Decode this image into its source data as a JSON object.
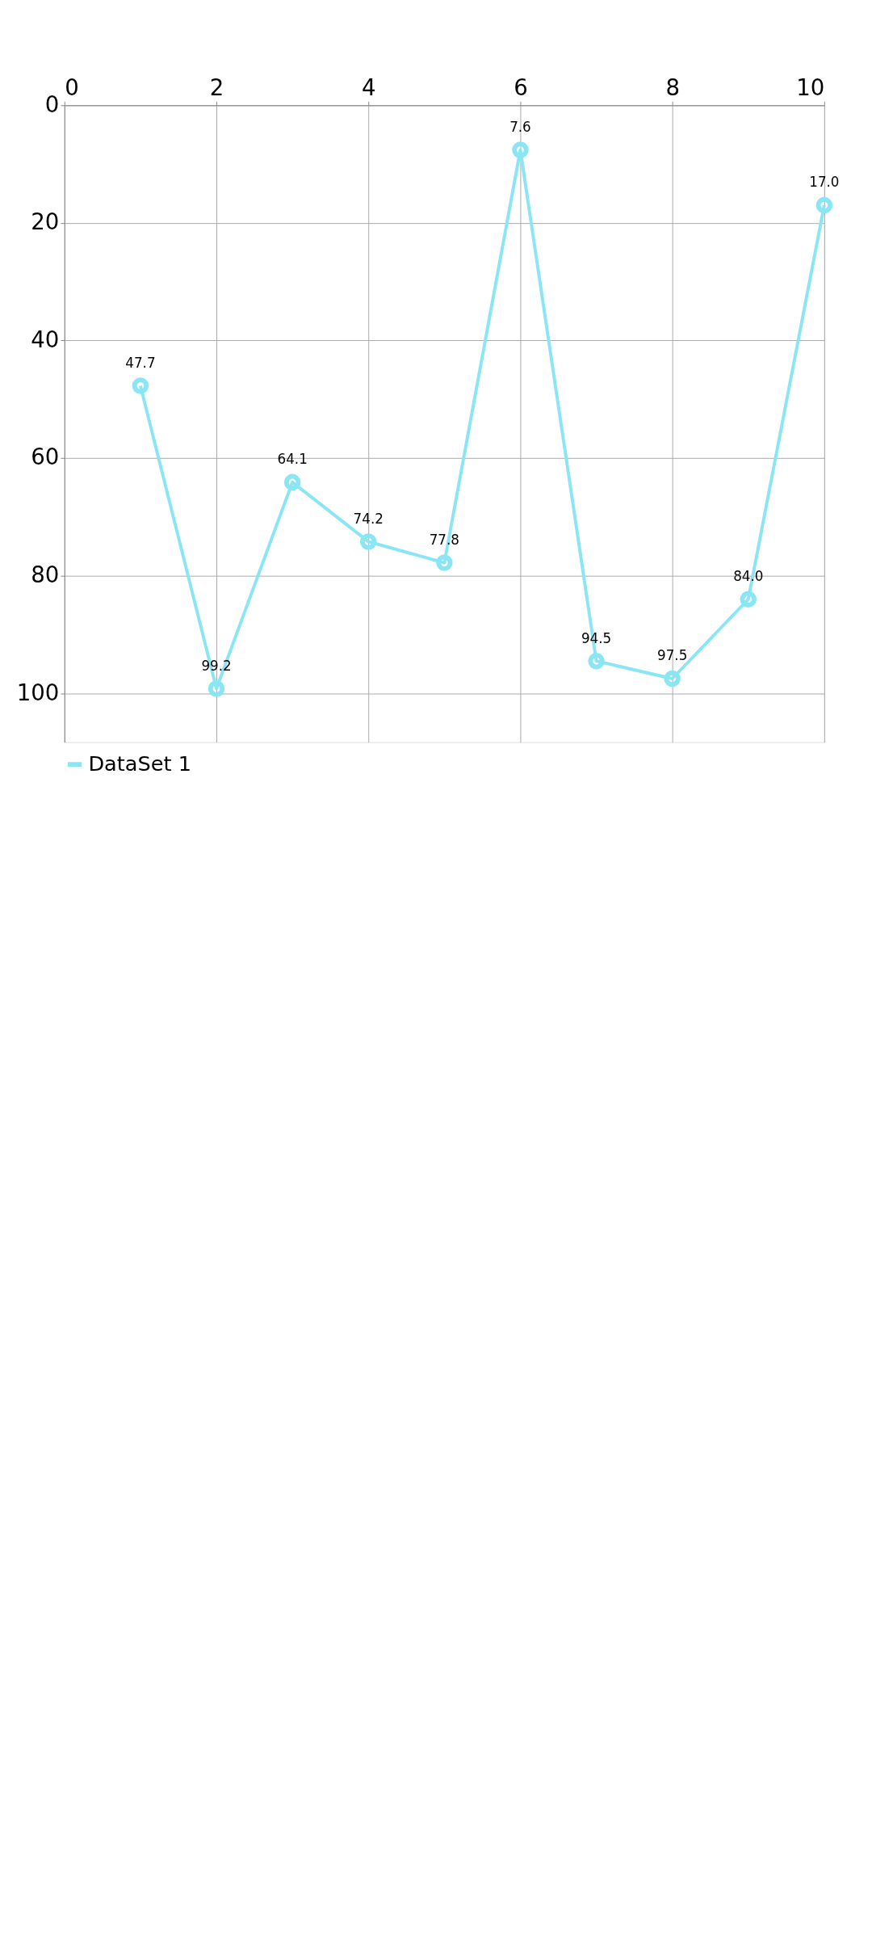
{
  "chart_data": {
    "type": "line",
    "x": [
      1,
      2,
      3,
      4,
      5,
      6,
      7,
      8,
      9,
      10
    ],
    "series": [
      {
        "name": "DataSet 1",
        "color": "#8ae6f5",
        "values": [
          47.7,
          99.2,
          64.1,
          74.2,
          77.8,
          7.6,
          94.5,
          97.5,
          84.0,
          17.0
        ],
        "value_labels": [
          "47.7",
          "99.2",
          "64.1",
          "74.2",
          "77.8",
          "7.6",
          "94.5",
          "97.5",
          "84.0",
          "17.0"
        ]
      }
    ],
    "xlim": [
      0,
      10
    ],
    "xticks": [
      0,
      2,
      4,
      6,
      8,
      10
    ],
    "ylim": [
      108.3,
      0
    ],
    "yticks": [
      0,
      20,
      40,
      60,
      80,
      100
    ],
    "grid": true,
    "legend": "bottom left",
    "marker": "circle",
    "line_style": "solid"
  }
}
